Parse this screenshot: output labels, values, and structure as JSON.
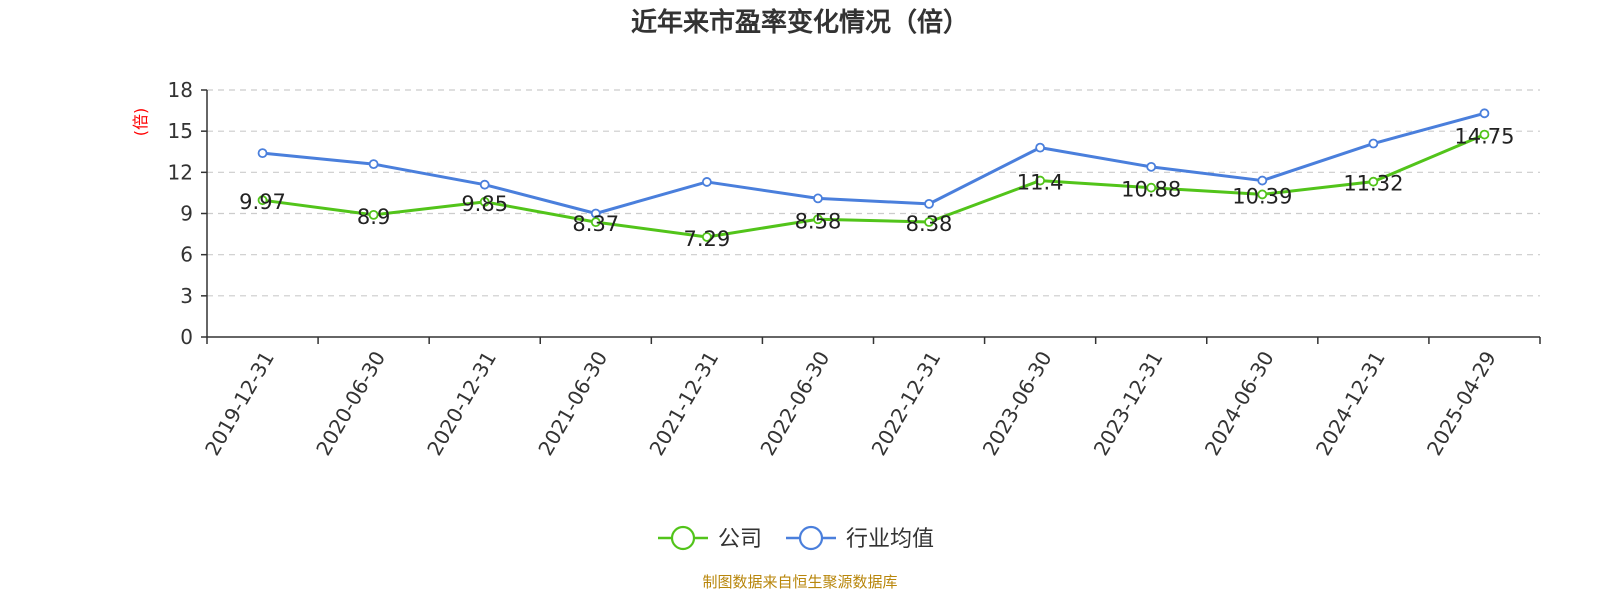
{
  "chart_data": {
    "type": "line",
    "title": "近年来市盈率变化情况（倍）",
    "ylabel": "(倍)",
    "xlabel": "",
    "categories": [
      "2019-12-31",
      "2020-06-30",
      "2020-12-31",
      "2021-06-30",
      "2021-12-31",
      "2022-06-30",
      "2022-12-31",
      "2023-06-30",
      "2023-12-31",
      "2024-06-30",
      "2024-12-31",
      "2025-04-29"
    ],
    "ylim": [
      0,
      18
    ],
    "yticks": [
      "0",
      "3",
      "6",
      "9",
      "12",
      "15",
      "18"
    ],
    "grid": true,
    "legend_position": "bottom-center",
    "series": [
      {
        "name": "公司",
        "color": "#52c41a",
        "values": [
          9.97,
          8.9,
          9.85,
          8.37,
          7.29,
          8.58,
          8.38,
          11.4,
          10.88,
          10.39,
          11.32,
          14.75
        ],
        "labels": [
          "9.97",
          "8.9",
          "9.85",
          "8.37",
          "7.29",
          "8.58",
          "8.38",
          "11.4",
          "10.88",
          "10.39",
          "11.32",
          "14.75"
        ]
      },
      {
        "name": "行业均值",
        "color": "#4a7fdc",
        "values": [
          13.4,
          12.6,
          11.1,
          9.0,
          11.3,
          10.1,
          9.7,
          13.8,
          12.4,
          11.4,
          14.1,
          16.3
        ]
      }
    ]
  },
  "colors": {
    "unit_label": "#ff0000",
    "source_text": "#b8860b",
    "axis": "#333333",
    "grid": "#cccccc"
  },
  "footer": {
    "source": "制图数据来自恒生聚源数据库"
  }
}
